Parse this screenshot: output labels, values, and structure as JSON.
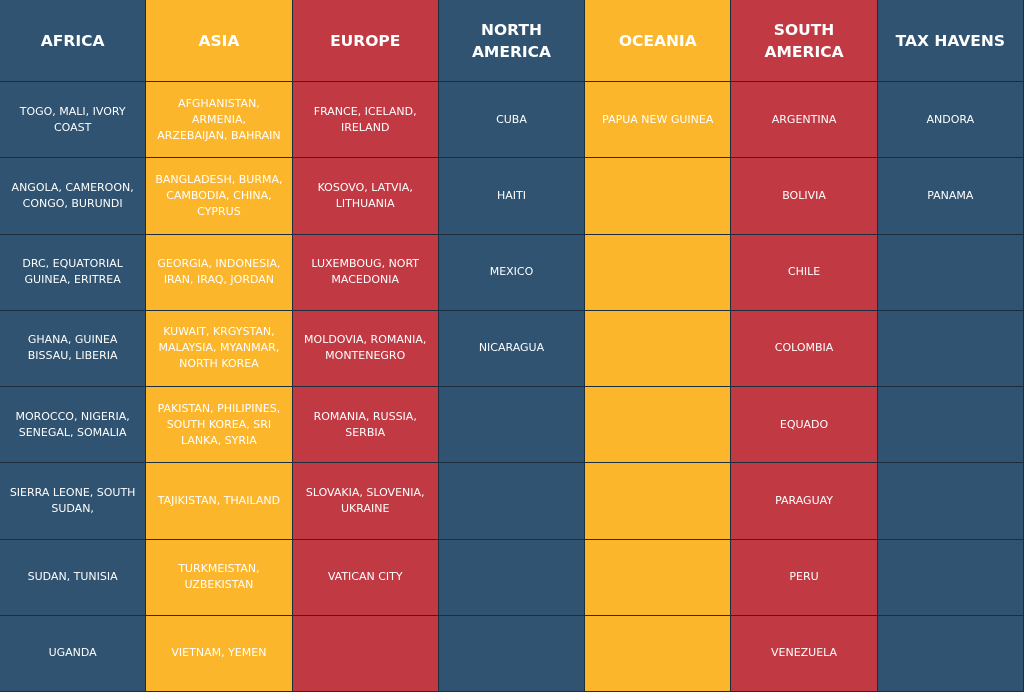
{
  "table": {
    "columns": [
      {
        "title": "AFRICA",
        "items": [
          "TOGO, MALI, IVORY COAST",
          "ANGOLA, CAMEROON, CONGO, BURUNDI",
          "DRC, EQUATORIAL GUINEA, ERITREA",
          "GHANA, GUINEA BISSAU, LIBERIA",
          "MOROCCO, NIGERIA, SENEGAL, SOMALIA",
          "SIERRA LEONE, SOUTH SUDAN,",
          "SUDAN, TUNISIA",
          "UGANDA"
        ]
      },
      {
        "title": "ASIA",
        "items": [
          "AFGHANISTAN, ARMENIA, ARZEBAIJAN, BAHRAIN",
          "BANGLADESH, BURMA, CAMBODIA, CHINA, CYPRUS",
          "GEORGIA, INDONESIA, IRAN, IRAQ, JORDAN",
          "KUWAIT, KRGYSTAN, MALAYSIA, MYANMAR, NORTH KOREA",
          "PAKISTAN, PHILIPINES, SOUTH KOREA, SRI LANKA, SYRIA",
          "TAJIKISTAN, THAILAND",
          "TURKMEISTAN, UZBEKISTAN",
          "VIETNAM, YEMEN"
        ]
      },
      {
        "title": "EUROPE",
        "items": [
          "FRANCE, ICELAND, IRELAND",
          "KOSOVO, LATVIA, LITHUANIA",
          "LUXEMBOUG, NORT MACEDONIA",
          "MOLDOVIA, ROMANIA, MONTENEGRO",
          "ROMANIA, RUSSIA, SERBIA",
          "SLOVAKIA, SLOVENIA, UKRAINE",
          "VATICAN CITY"
        ]
      },
      {
        "title": "NORTH AMERICA",
        "items": [
          "CUBA",
          "HAITI",
          "MEXICO",
          "NICARAGUA"
        ]
      },
      {
        "title": "OCEANIA",
        "items": [
          "PAPUA NEW GUINEA"
        ]
      },
      {
        "title": "SOUTH AMERICA",
        "items": [
          "ARGENTINA",
          "BOLIVIA",
          "CHILE",
          "COLOMBIA",
          "EQUADO",
          "PARAGUAY",
          "PERU",
          "VENEZUELA"
        ]
      },
      {
        "title": "TAX HAVENS",
        "items": [
          "ANDORA",
          "PANAMA"
        ]
      }
    ]
  }
}
